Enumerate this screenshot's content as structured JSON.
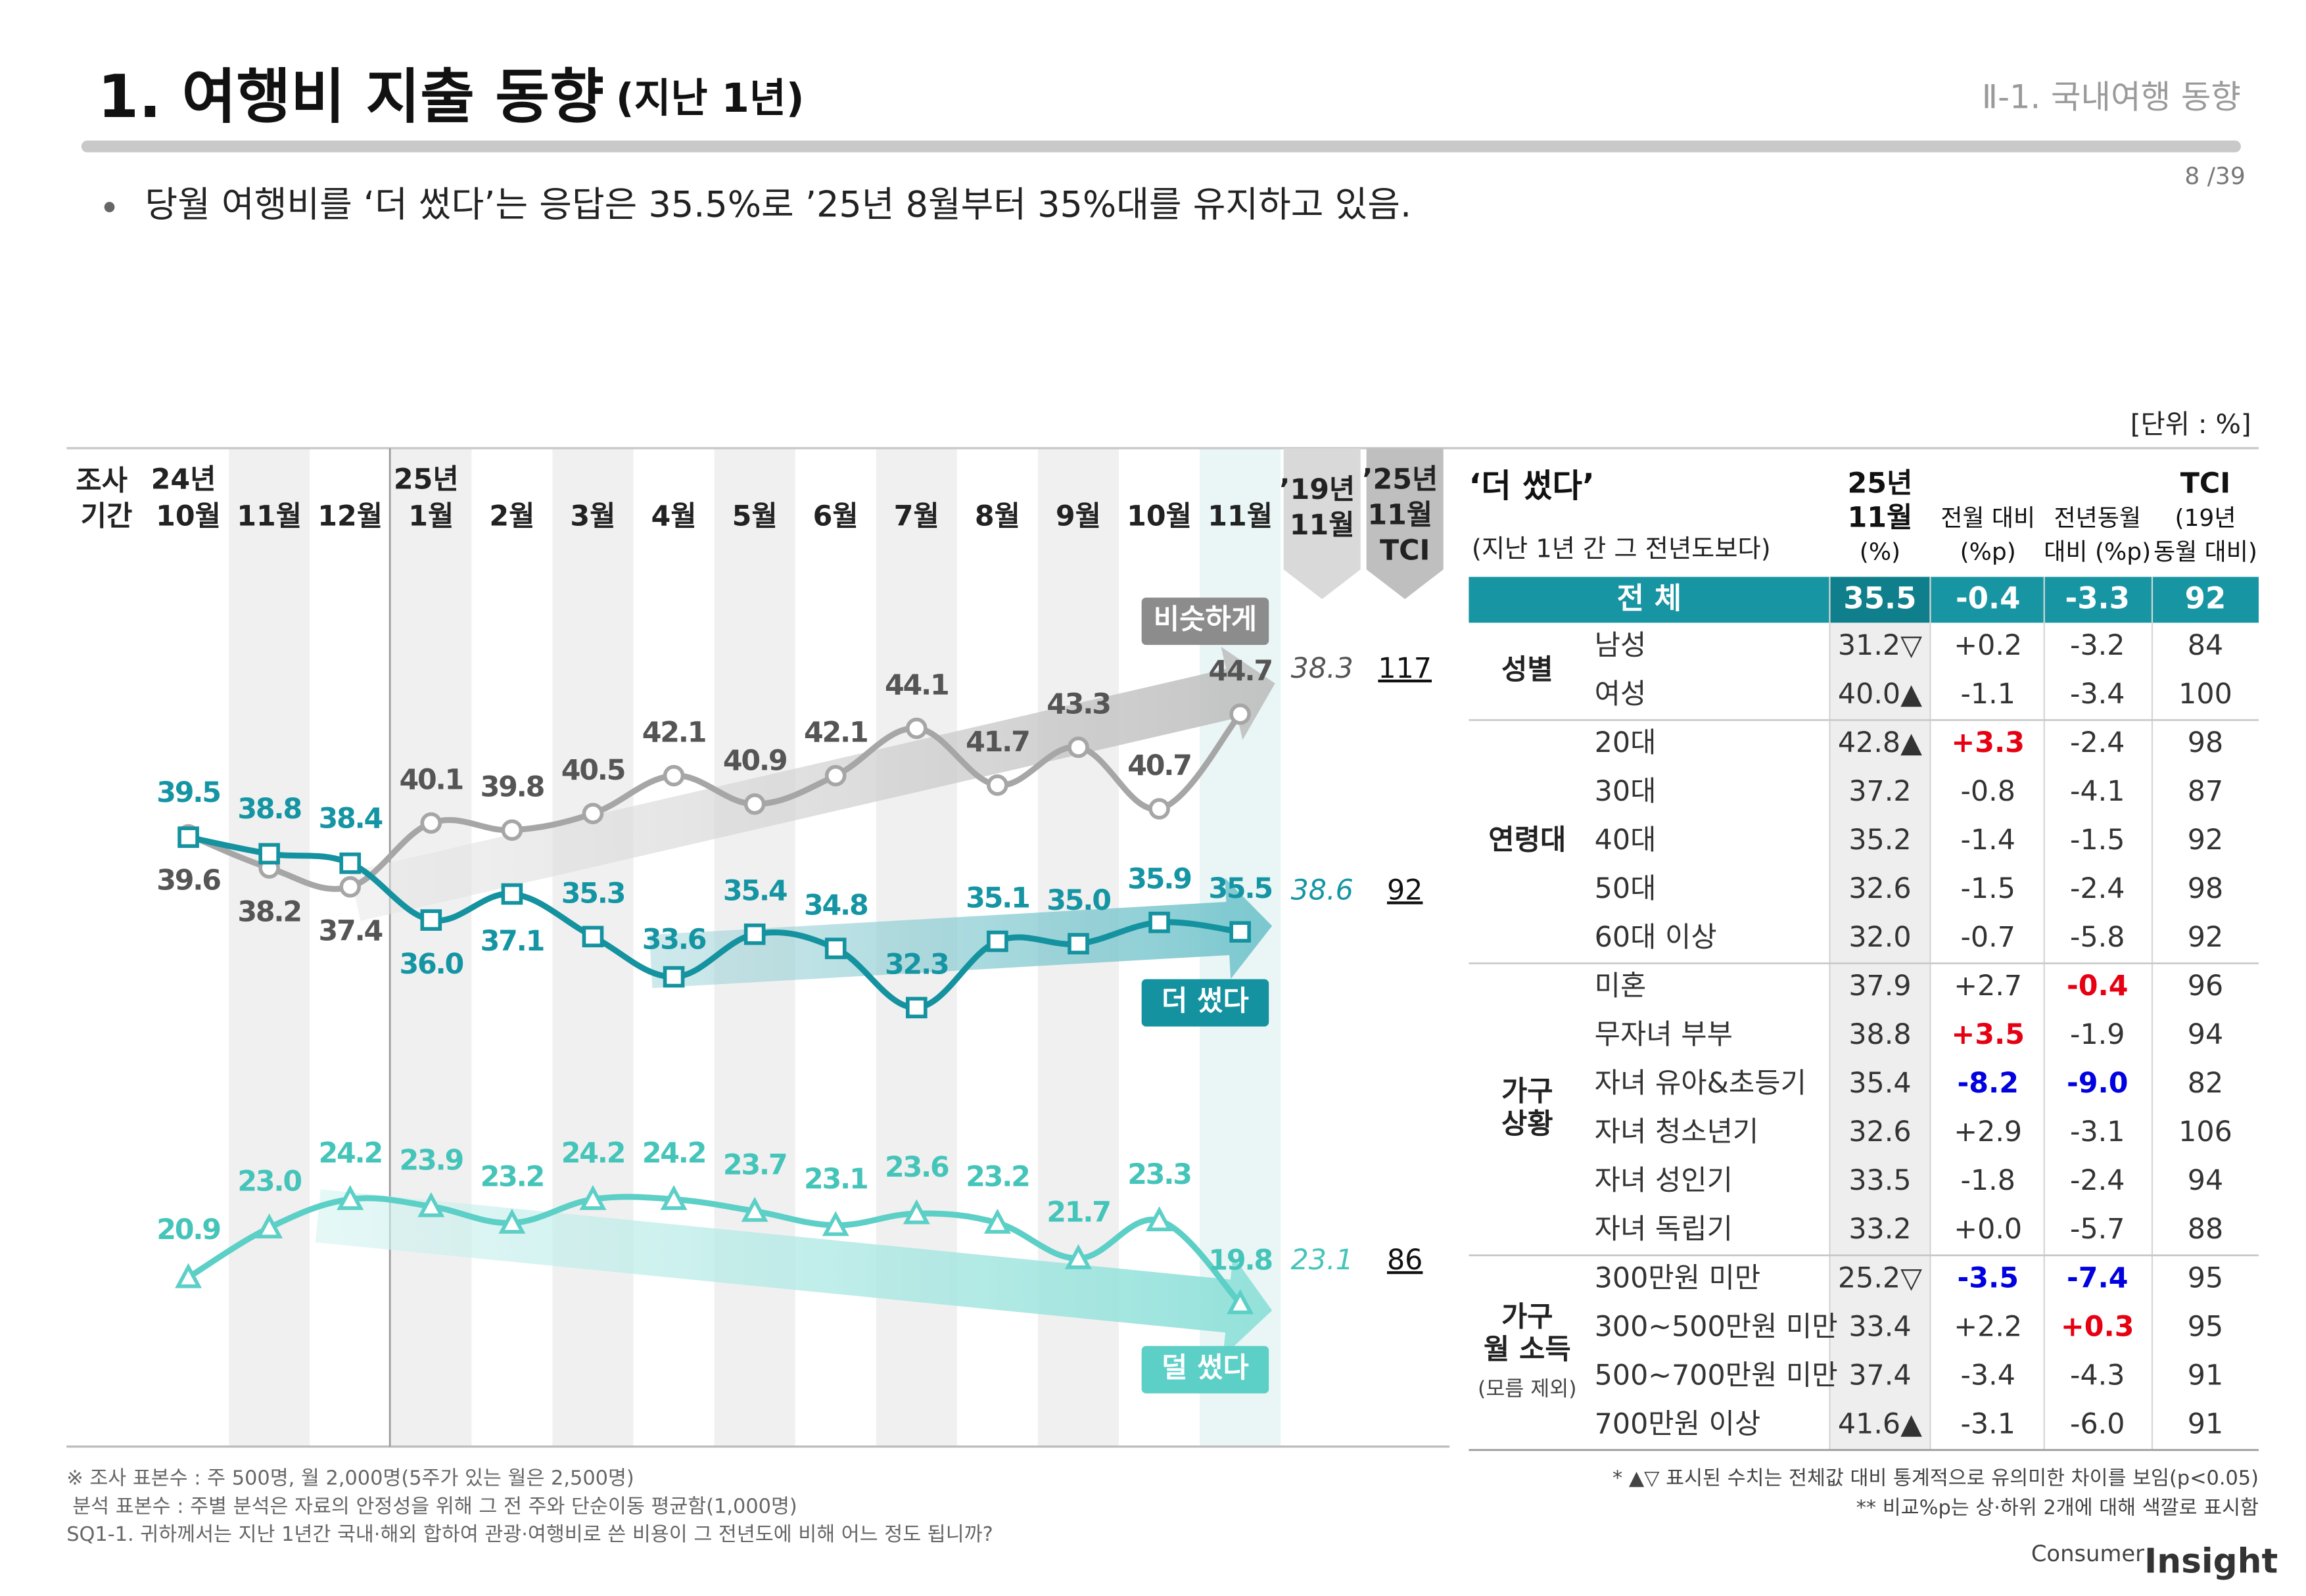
{
  "header": {
    "title": "1. 여행비 지출 동향",
    "title_note": "(지난 1년)",
    "section": "Ⅱ-1. 국내여행 동향",
    "page": "8 /39",
    "summary": "당월 여행비를 ‘더 썼다’는 응답은 35.5%로 ’25년 8월부터 35%대를 유지하고 있음.",
    "unit": "[단위 : %]"
  },
  "chart_data": {
    "type": "line",
    "x_label": "조사 기간",
    "categories": [
      "24년 10월",
      "11월",
      "12월",
      "25년 1월",
      "2월",
      "3월",
      "4월",
      "5월",
      "6월",
      "7월",
      "8월",
      "9월",
      "10월",
      "11월"
    ],
    "ylim": [
      14,
      50
    ],
    "comparison_headers": [
      "’19년 11월",
      "’25년 11월 TCI"
    ],
    "series": [
      {
        "name": "비슷하게",
        "color": "#a6a6a6",
        "label_color": "#555555",
        "marker": "circle",
        "values": [
          39.6,
          38.2,
          37.4,
          40.1,
          39.8,
          40.5,
          42.1,
          40.9,
          42.1,
          44.1,
          41.7,
          43.3,
          40.7,
          44.7
        ],
        "value_labels": [
          "39.6",
          "38.2",
          "37.4",
          "40.1",
          "39.8",
          "40.5",
          "42.1",
          "40.9",
          "42.1",
          "44.1",
          "41.7",
          "43.3",
          "40.7",
          "44.7"
        ],
        "value_2019": 38.3,
        "tci": 117
      },
      {
        "name": "더 썼다",
        "color": "#14929f",
        "label_color": "#1595a3",
        "marker": "square",
        "values": [
          39.5,
          38.8,
          38.4,
          36.0,
          37.1,
          35.3,
          33.6,
          35.4,
          34.8,
          32.3,
          35.1,
          35.0,
          35.9,
          35.5
        ],
        "value_labels": [
          "39.5",
          "38.8",
          "38.4",
          "36.0",
          "37.1",
          "35.3",
          "33.6",
          "35.4",
          "34.8",
          "32.3",
          "35.1",
          "35.0",
          "35.9",
          "35.5"
        ],
        "value_2019": 38.6,
        "tci": 92
      },
      {
        "name": "덜 썼다",
        "color": "#5ccfc6",
        "label_color": "#45c4ba",
        "marker": "triangle",
        "values": [
          20.9,
          23.0,
          24.2,
          23.9,
          23.2,
          24.2,
          24.2,
          23.7,
          23.1,
          23.6,
          23.2,
          21.7,
          23.3,
          19.8
        ],
        "value_labels": [
          "20.9",
          "23.0",
          "24.2",
          "23.9",
          "23.2",
          "24.2",
          "24.2",
          "23.7",
          "23.1",
          "23.6",
          "23.2",
          "21.7",
          "23.3",
          "19.8"
        ],
        "value_2019": 23.1,
        "tci": 86
      }
    ]
  },
  "table": {
    "title": "‘더 썼다’",
    "subtitle": "(지난 1년 간 그 전년도보다)",
    "headers": [
      [
        "25년",
        "11월",
        "(%)"
      ],
      [
        "전월 대비",
        "(%p)"
      ],
      [
        "전년동월",
        "대비 (%p)"
      ],
      [
        "TCI",
        "(19년",
        "동월 대비)"
      ]
    ],
    "total": {
      "label": "전 체",
      "values": [
        "35.5",
        "-0.4",
        "-3.3",
        "92"
      ]
    },
    "groups": [
      {
        "label": [
          "성별"
        ],
        "rows": [
          {
            "label": "남성",
            "values": [
              "31.2▽",
              "+0.2",
              "-3.2",
              "84"
            ]
          },
          {
            "label": "여성",
            "values": [
              "40.0▲",
              "-1.1",
              "-3.4",
              "100"
            ]
          }
        ]
      },
      {
        "label": [
          "연령대"
        ],
        "rows": [
          {
            "label": "20대",
            "values": [
              "42.8▲",
              {
                "text": "+3.3",
                "color": "#e60012"
              },
              "-2.4",
              "98"
            ]
          },
          {
            "label": "30대",
            "values": [
              "37.2",
              "-0.8",
              "-4.1",
              "87"
            ]
          },
          {
            "label": "40대",
            "values": [
              "35.2",
              "-1.4",
              "-1.5",
              "92"
            ]
          },
          {
            "label": "50대",
            "values": [
              "32.6",
              "-1.5",
              "-2.4",
              "98"
            ]
          },
          {
            "label": "60대 이상",
            "values": [
              "32.0",
              "-0.7",
              "-5.8",
              "92"
            ]
          }
        ]
      },
      {
        "label": [
          "가구",
          "상황"
        ],
        "rows": [
          {
            "label": "미혼",
            "values": [
              "37.9",
              "+2.7",
              {
                "text": "-0.4",
                "color": "#e60012"
              },
              "96"
            ]
          },
          {
            "label": "무자녀 부부",
            "values": [
              "38.8",
              {
                "text": "+3.5",
                "color": "#e60012"
              },
              "-1.9",
              "94"
            ]
          },
          {
            "label": "자녀 유아&초등기",
            "values": [
              "35.4",
              {
                "text": "-8.2",
                "color": "#0000e0"
              },
              {
                "text": "-9.0",
                "color": "#0000e0"
              },
              "82"
            ]
          },
          {
            "label": "자녀 청소년기",
            "values": [
              "32.6",
              "+2.9",
              "-3.1",
              "106"
            ]
          },
          {
            "label": "자녀 성인기",
            "values": [
              "33.5",
              "-1.8",
              "-2.4",
              "94"
            ]
          },
          {
            "label": "자녀 독립기",
            "values": [
              "33.2",
              "+0.0",
              "-5.7",
              "88"
            ]
          }
        ]
      },
      {
        "label": [
          "가구",
          "월 소득"
        ],
        "note": "(모름 제외)",
        "rows": [
          {
            "label": "300만원 미만",
            "values": [
              "25.2▽",
              {
                "text": "-3.5",
                "color": "#0000e0"
              },
              {
                "text": "-7.4",
                "color": "#0000e0"
              },
              "95"
            ]
          },
          {
            "label": "300~500만원 미만",
            "values": [
              "33.4",
              "+2.2",
              {
                "text": "+0.3",
                "color": "#e60012"
              },
              "95"
            ]
          },
          {
            "label": "500~700만원 미만",
            "values": [
              "37.4",
              "-3.4",
              "-4.3",
              "91"
            ]
          },
          {
            "label": "700만원 이상",
            "values": [
              "41.6▲",
              "-3.1",
              "-6.0",
              "91"
            ]
          }
        ]
      }
    ]
  },
  "footnotes": {
    "left": [
      "※ 조사 표본수 : 주 500명, 월 2,000명(5주가 있는 월은 2,500명)",
      "분석 표본수 : 주별 분석은 자료의 안정성을 위해 그 전 주와 단순이동 평균함(1,000명)",
      "SQ1-1. 귀하께서는 지난 1년간 국내·해외 합하여 관광·여행비로 쓴 비용이 그 전년도에 비해 어느 정도 됩니까?"
    ],
    "right": [
      "* ▲▽ 표시된 수치는 전체값 대비 통계적으로 유의미한 차이를 보임(p<0.05)",
      "** 비교%p는 상·하위 2개에 대해 색깔로 표시함"
    ]
  },
  "logo": [
    "Consumer",
    "Insight"
  ]
}
